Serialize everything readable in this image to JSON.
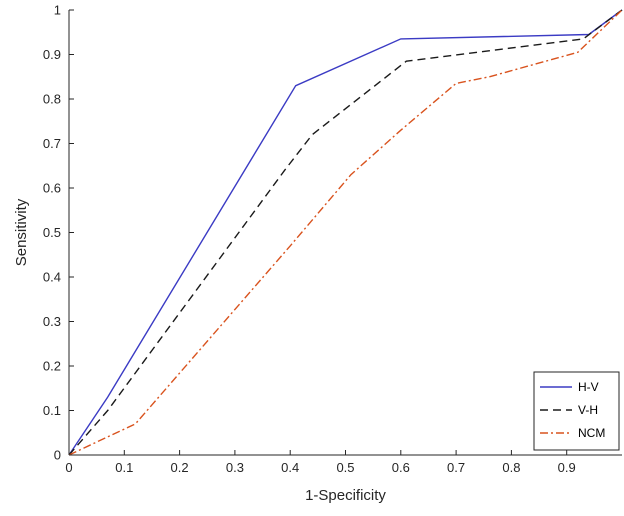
{
  "chart_data": {
    "type": "line",
    "xlabel": "1-Specificity",
    "ylabel": "Sensitivity",
    "xlim": [
      0,
      1
    ],
    "ylim": [
      0,
      1
    ],
    "xticks": [
      "0",
      "0.1",
      "0.2",
      "0.3",
      "0.4",
      "0.5",
      "0.6",
      "0.7",
      "0.8",
      "0.9"
    ],
    "yticks": [
      "0",
      "0.1",
      "0.2",
      "0.3",
      "0.4",
      "0.5",
      "0.6",
      "0.7",
      "0.8",
      "0.9",
      "1"
    ],
    "grid": false,
    "legend_position": "bottom-right",
    "series": [
      {
        "name": "H-V",
        "color": "#3b3bc4",
        "dash": "solid",
        "x": [
          0,
          0.07,
          0.41,
          0.6,
          0.94,
          1.0
        ],
        "y": [
          0,
          0.13,
          0.83,
          0.935,
          0.945,
          1.0
        ]
      },
      {
        "name": "V-H",
        "color": "#1a1a1a",
        "dash": "dashed",
        "x": [
          0,
          0.07,
          0.39,
          0.44,
          0.61,
          0.93,
          1.0
        ],
        "y": [
          0,
          0.1,
          0.64,
          0.72,
          0.885,
          0.935,
          1.0
        ]
      },
      {
        "name": "NCM",
        "color": "#d9531e",
        "dash": "dashdot",
        "x": [
          0,
          0.12,
          0.4,
          0.51,
          0.6,
          0.7,
          0.76,
          0.92,
          1.0
        ],
        "y": [
          0,
          0.07,
          0.47,
          0.63,
          0.73,
          0.835,
          0.85,
          0.905,
          1.0
        ]
      }
    ]
  }
}
